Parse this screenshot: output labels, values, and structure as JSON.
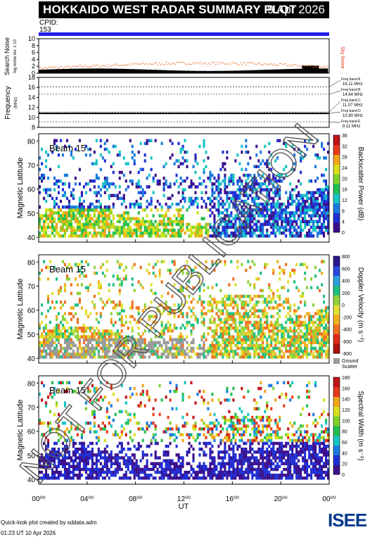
{
  "header": {
    "title": "HOKKAIDO WEST RADAR SUMMARY PLOT",
    "date": "9 Apr 2026"
  },
  "cpid": {
    "label": "CPID:",
    "value": "153"
  },
  "noise_panel": {
    "ylabel": "Search Noise",
    "ylabel_sub": "log noise lev. x 10",
    "yticks": [
      "0",
      "2",
      "4",
      "6",
      "8",
      "10"
    ],
    "right_label": "Sky Noise"
  },
  "freq_panel": {
    "ylabel": "Frequency",
    "unit": "(MHz)",
    "yticks": [
      "8",
      "10",
      "12",
      "14",
      "16",
      "18"
    ],
    "bands": [
      {
        "name": "Freq band A",
        "value": "16.11 MHz"
      },
      {
        "name": "Freq band B",
        "value": "14.64 MHz"
      },
      {
        "name": "Freq band C",
        "value": "11.07 MHz"
      },
      {
        "name": "Freq band D",
        "value": "10.80 MHz"
      },
      {
        "name": "Freq band E",
        "value": "9.11 MHz"
      }
    ]
  },
  "panels": [
    {
      "beam": "Beam 15",
      "ylabel": "Magnetic Latitude",
      "cbar_label": "Backscatter Power (dB)",
      "cbar_ticks": [
        "0",
        "4",
        "8",
        "12",
        "16",
        "20",
        "24",
        "28",
        "32",
        "36"
      ]
    },
    {
      "beam": "Beam 15",
      "ylabel": "Magnetic Latitude",
      "cbar_label": "Doppler Velocity (m s⁻¹)",
      "cbar_ticks": [
        "800",
        "600",
        "400",
        "200",
        "0",
        "-200",
        "-400",
        "-600",
        "-800"
      ],
      "extra": [
        "Ground",
        "Scatter"
      ]
    },
    {
      "beam": "Beam 15",
      "ylabel": "Magnetic Latitude",
      "cbar_label": "Spectral Width (m s⁻¹)",
      "cbar_ticks": [
        "0",
        "20",
        "40",
        "60",
        "80",
        "100",
        "120",
        "140",
        "160",
        "180"
      ]
    }
  ],
  "lat_ticks": [
    "40",
    "50",
    "60",
    "70",
    "80"
  ],
  "x_axis": {
    "ticks": [
      "00⁰⁰",
      "04⁰⁰",
      "08⁰⁰",
      "12⁰⁰",
      "16⁰⁰",
      "20⁰⁰",
      "00⁰⁰"
    ],
    "label": "UT"
  },
  "watermark": "NOT FOR PUBLICATION",
  "footer": {
    "line1": "Quick-look plot created by sddata.adm",
    "line2": "01:23 UT 10 Apr 2026"
  },
  "logo": {
    "text": "ISEE"
  },
  "chart_data": {
    "type": "heatmap",
    "title": "HOKKAIDO WEST RADAR SUMMARY PLOT",
    "xlabel": "UT",
    "x_range_hours": [
      0,
      24
    ],
    "lat_range": [
      38,
      83
    ],
    "panels": [
      {
        "quantity": "Backscatter Power",
        "unit": "dB",
        "range": [
          0,
          36
        ]
      },
      {
        "quantity": "Doppler Velocity",
        "unit": "m s-1",
        "range": [
          -800,
          800
        ]
      },
      {
        "quantity": "Spectral Width",
        "unit": "m s-1",
        "range": [
          0,
          180
        ]
      }
    ],
    "frequency_bands_mhz": [
      16.11,
      14.64,
      11.07,
      10.8,
      9.11
    ],
    "noise_range": [
      0,
      10
    ]
  }
}
